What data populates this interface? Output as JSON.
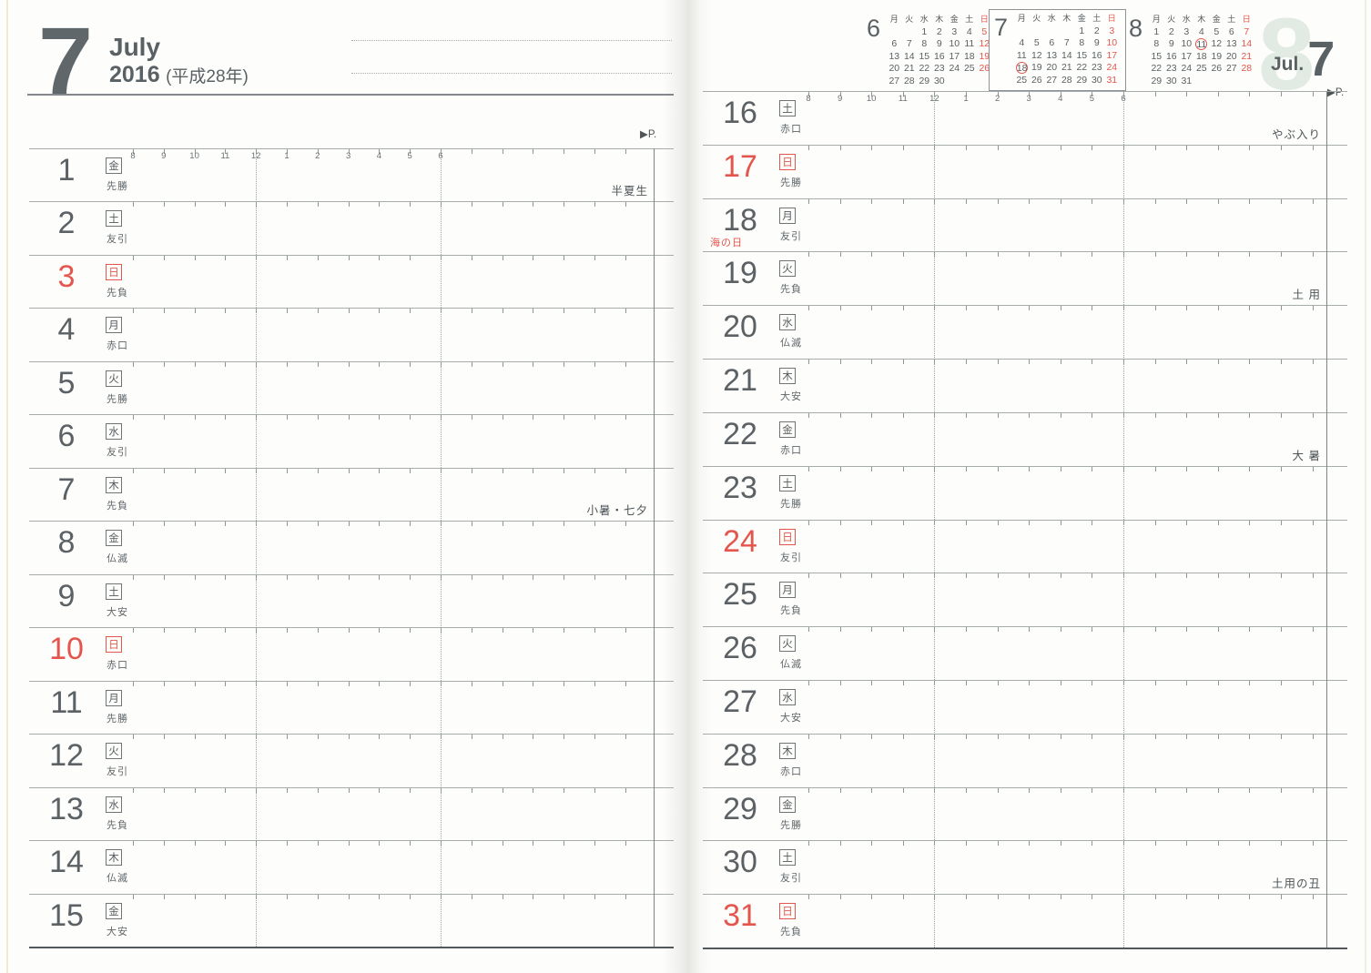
{
  "colors": {
    "ink": "#5b6164",
    "red": "#e4564d",
    "line": "#a6abab",
    "line_dark": "#51575a"
  },
  "time_ruler": [
    "8",
    "9",
    "10",
    "11",
    "12",
    "1",
    "2",
    "3",
    "4",
    "5",
    "6"
  ],
  "left_page": {
    "month_number": "7",
    "month_name": "July",
    "year": "2016",
    "era": "(平成28年)",
    "page_marker": "▶P.",
    "days": [
      {
        "day": "1",
        "weekday": "金",
        "rokuyo": "先勝",
        "sunday": false,
        "note": "半夏生"
      },
      {
        "day": "2",
        "weekday": "土",
        "rokuyo": "友引",
        "sunday": false
      },
      {
        "day": "3",
        "weekday": "日",
        "rokuyo": "先負",
        "sunday": true
      },
      {
        "day": "4",
        "weekday": "月",
        "rokuyo": "赤口",
        "sunday": false
      },
      {
        "day": "5",
        "weekday": "火",
        "rokuyo": "先勝",
        "sunday": false
      },
      {
        "day": "6",
        "weekday": "水",
        "rokuyo": "友引",
        "sunday": false
      },
      {
        "day": "7",
        "weekday": "木",
        "rokuyo": "先負",
        "sunday": false,
        "note": "小暑・七夕"
      },
      {
        "day": "8",
        "weekday": "金",
        "rokuyo": "仏滅",
        "sunday": false
      },
      {
        "day": "9",
        "weekday": "土",
        "rokuyo": "大安",
        "sunday": false
      },
      {
        "day": "10",
        "weekday": "日",
        "rokuyo": "赤口",
        "sunday": true
      },
      {
        "day": "11",
        "weekday": "月",
        "rokuyo": "先勝",
        "sunday": false
      },
      {
        "day": "12",
        "weekday": "火",
        "rokuyo": "友引",
        "sunday": false
      },
      {
        "day": "13",
        "weekday": "水",
        "rokuyo": "先負",
        "sunday": false
      },
      {
        "day": "14",
        "weekday": "木",
        "rokuyo": "仏滅",
        "sunday": false
      },
      {
        "day": "15",
        "weekday": "金",
        "rokuyo": "大安",
        "sunday": false
      }
    ]
  },
  "right_page": {
    "page_marker": "▶P.",
    "corner_label": "Jul.",
    "corner_number": "7",
    "ghost_number": "8",
    "days": [
      {
        "day": "16",
        "weekday": "土",
        "rokuyo": "赤口",
        "sunday": false,
        "note": "やぶ入り"
      },
      {
        "day": "17",
        "weekday": "日",
        "rokuyo": "先勝",
        "sunday": true
      },
      {
        "day": "18",
        "weekday": "月",
        "rokuyo": "友引",
        "sunday": false,
        "holiday": "海の日"
      },
      {
        "day": "19",
        "weekday": "火",
        "rokuyo": "先負",
        "sunday": false,
        "note": "土 用"
      },
      {
        "day": "20",
        "weekday": "水",
        "rokuyo": "仏滅",
        "sunday": false
      },
      {
        "day": "21",
        "weekday": "木",
        "rokuyo": "大安",
        "sunday": false
      },
      {
        "day": "22",
        "weekday": "金",
        "rokuyo": "赤口",
        "sunday": false,
        "note": "大 暑"
      },
      {
        "day": "23",
        "weekday": "土",
        "rokuyo": "先勝",
        "sunday": false
      },
      {
        "day": "24",
        "weekday": "日",
        "rokuyo": "友引",
        "sunday": true
      },
      {
        "day": "25",
        "weekday": "月",
        "rokuyo": "先負",
        "sunday": false
      },
      {
        "day": "26",
        "weekday": "火",
        "rokuyo": "仏滅",
        "sunday": false
      },
      {
        "day": "27",
        "weekday": "水",
        "rokuyo": "大安",
        "sunday": false
      },
      {
        "day": "28",
        "weekday": "木",
        "rokuyo": "赤口",
        "sunday": false
      },
      {
        "day": "29",
        "weekday": "金",
        "rokuyo": "先勝",
        "sunday": false
      },
      {
        "day": "30",
        "weekday": "土",
        "rokuyo": "友引",
        "sunday": false,
        "note": "土用の丑"
      },
      {
        "day": "31",
        "weekday": "日",
        "rokuyo": "先負",
        "sunday": true
      }
    ]
  },
  "mini_calendars": {
    "weekday_header": [
      "月",
      "火",
      "水",
      "木",
      "金",
      "土",
      "日"
    ],
    "months": [
      {
        "month": "6",
        "boxed": false,
        "circled": [],
        "weeks": [
          [
            "",
            "",
            "1",
            "2",
            "3",
            "4",
            "5"
          ],
          [
            "6",
            "7",
            "8",
            "9",
            "10",
            "11",
            "12"
          ],
          [
            "13",
            "14",
            "15",
            "16",
            "17",
            "18",
            "19"
          ],
          [
            "20",
            "21",
            "22",
            "23",
            "24",
            "25",
            "26"
          ],
          [
            "27",
            "28",
            "29",
            "30",
            "",
            "",
            ""
          ]
        ]
      },
      {
        "month": "7",
        "boxed": true,
        "circled": [
          "18"
        ],
        "weeks": [
          [
            "",
            "",
            "",
            "",
            "1",
            "2",
            "3"
          ],
          [
            "4",
            "5",
            "6",
            "7",
            "8",
            "9",
            "10"
          ],
          [
            "11",
            "12",
            "13",
            "14",
            "15",
            "16",
            "17"
          ],
          [
            "18",
            "19",
            "20",
            "21",
            "22",
            "23",
            "24"
          ],
          [
            "25",
            "26",
            "27",
            "28",
            "29",
            "30",
            "31"
          ]
        ]
      },
      {
        "month": "8",
        "boxed": false,
        "circled": [
          "11"
        ],
        "weeks": [
          [
            "1",
            "2",
            "3",
            "4",
            "5",
            "6",
            "7"
          ],
          [
            "8",
            "9",
            "10",
            "11",
            "12",
            "13",
            "14"
          ],
          [
            "15",
            "16",
            "17",
            "18",
            "19",
            "20",
            "21"
          ],
          [
            "22",
            "23",
            "24",
            "25",
            "26",
            "27",
            "28"
          ],
          [
            "29",
            "30",
            "31",
            "",
            "",
            "",
            ""
          ]
        ]
      }
    ]
  }
}
